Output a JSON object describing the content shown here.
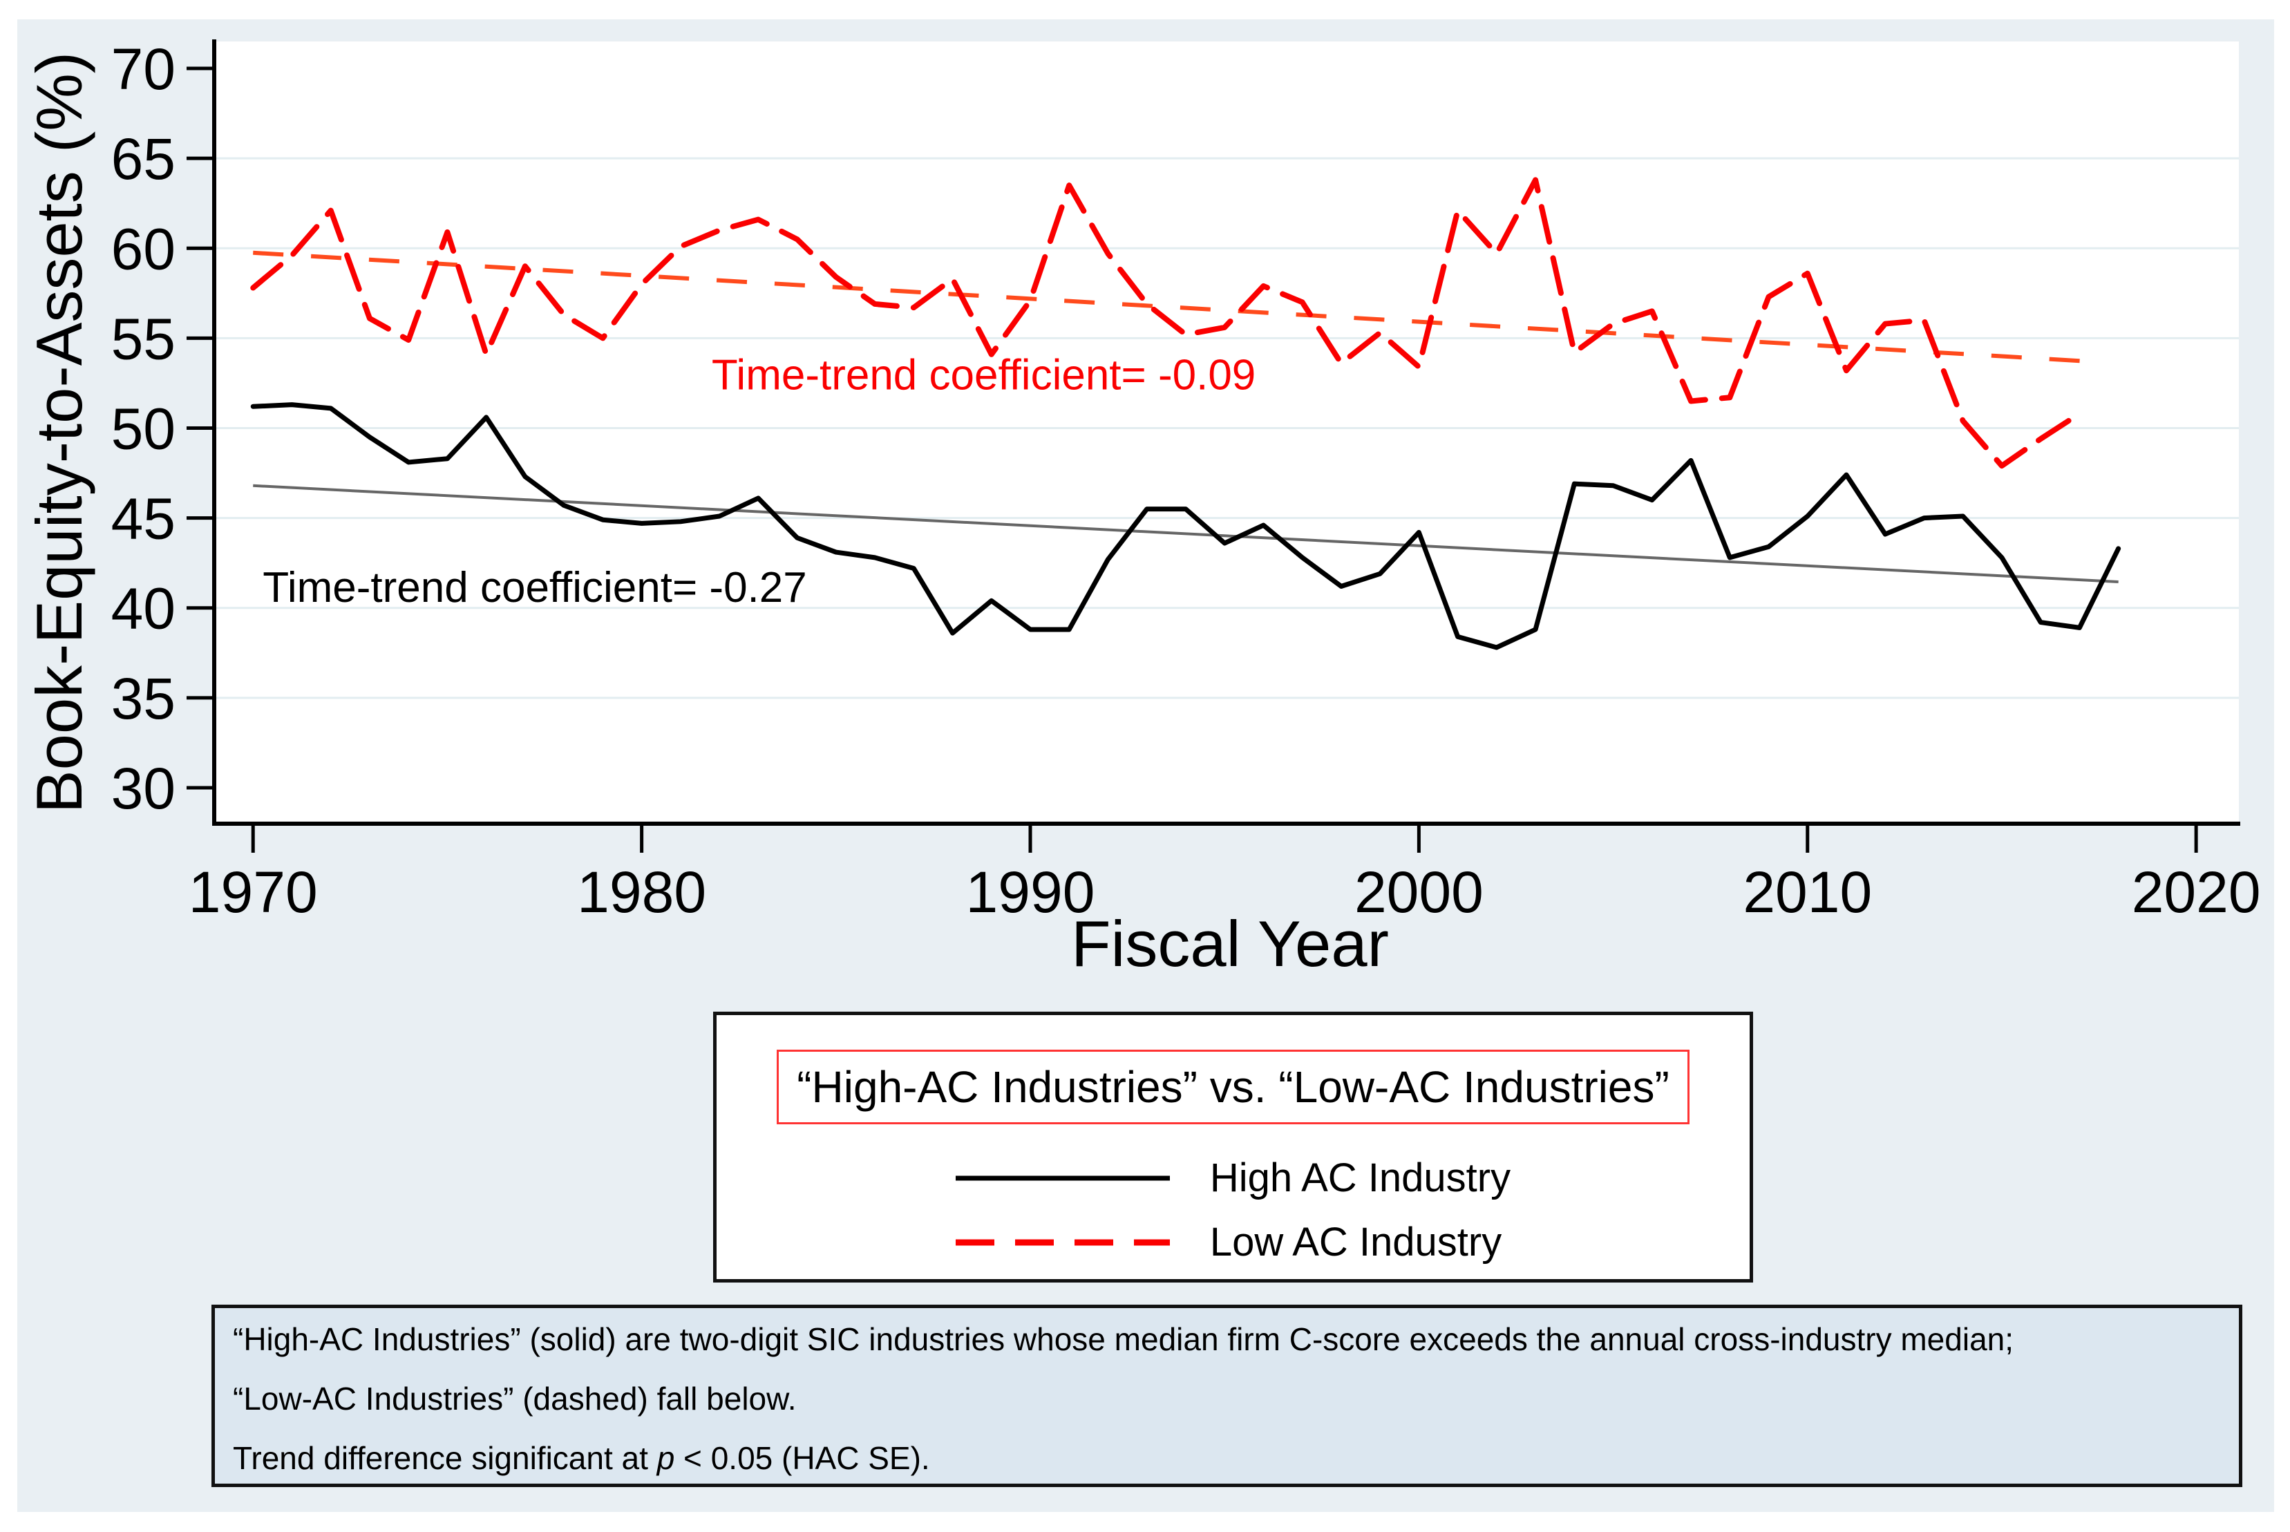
{
  "figure": {
    "background_color": "#e9eff3",
    "plot_background_color": "#ffffff",
    "gridline_color": "#e2edf0",
    "axis_color": "#000000",
    "notes_background_color": "#dce7f0",
    "legend_title_border_color": "#ff3333"
  },
  "chart_data": {
    "type": "line",
    "title": "",
    "xlabel": "Fiscal Year",
    "ylabel": "Book-Equity-to-Assets (%)",
    "x_range": [
      1969,
      2021.1
    ],
    "y_range": [
      28,
      71.5
    ],
    "x_ticks": [
      1970,
      1980,
      1990,
      2000,
      2010,
      2020
    ],
    "y_ticks": [
      30,
      35,
      40,
      45,
      50,
      55,
      60,
      65,
      70
    ],
    "gridlines": [
      35,
      40,
      45,
      50,
      55,
      60,
      65
    ],
    "grid_on": true,
    "legend_position": "below",
    "series": [
      {
        "name": "low_ac",
        "label": "Low AC Industry",
        "color": "#fa0000",
        "dash": "52 24",
        "width": 8,
        "start_year": 1970,
        "values": [
          57.8,
          59.6,
          62.1,
          56.1,
          54.9,
          60.9,
          54.1,
          59.0,
          56.3,
          55.0,
          58.0,
          60.1,
          61.0,
          61.6,
          60.5,
          58.4,
          56.9,
          56.7,
          58.3,
          54.1,
          57.1,
          63.5,
          59.7,
          56.9,
          55.2,
          55.6,
          57.9,
          57.0,
          53.6,
          55.3,
          53.4,
          62.1,
          59.7,
          63.8,
          54.2,
          55.8,
          56.5,
          51.5,
          51.7,
          57.3,
          58.6,
          53.2,
          55.8,
          56.0,
          50.4,
          47.9,
          49.4,
          50.8
        ]
      },
      {
        "name": "high_ac",
        "label": "High AC Industry",
        "color": "#000000",
        "dash": null,
        "width": 7,
        "start_year": 1970,
        "values": [
          51.2,
          51.3,
          51.1,
          49.5,
          48.1,
          48.3,
          50.6,
          47.3,
          45.7,
          44.9,
          44.7,
          44.8,
          45.1,
          46.1,
          43.9,
          43.1,
          42.8,
          42.2,
          38.6,
          40.4,
          38.8,
          38.8,
          42.7,
          45.5,
          45.5,
          43.6,
          44.6,
          42.8,
          41.2,
          41.9,
          44.2,
          38.4,
          37.8,
          38.8,
          46.9,
          46.8,
          46.0,
          48.2,
          42.8,
          43.4,
          45.1,
          47.4,
          44.1,
          45.0,
          45.1,
          42.8,
          39.2,
          38.9,
          43.3
        ]
      }
    ],
    "trend_lines": [
      {
        "name": "low_ac_trend",
        "color": "#ff4a1c",
        "dash": "44 40",
        "width": 6,
        "x": [
          1970,
          2017.3
        ],
        "y": [
          59.75,
          53.7
        ],
        "coefficient": -0.09
      },
      {
        "name": "high_ac_trend",
        "color": "#666666",
        "dash": null,
        "width": 4,
        "x": [
          1970,
          2018
        ],
        "y": [
          46.8,
          41.45
        ],
        "coefficient": -0.27
      }
    ],
    "annotations": [
      {
        "name": "low-trend-annotation",
        "text": "Time-trend coefficient= -0.09",
        "color": "#fa0000",
        "x": 1981.8,
        "y": 53.0,
        "font_size": 62
      },
      {
        "name": "high-trend-annotation",
        "text": "Time-trend coefficient= -0.27",
        "color": "#000000",
        "x": 1970.25,
        "y": 41.2,
        "font_size": 62
      }
    ]
  },
  "axes": {
    "x_title": "Fiscal Year",
    "y_title": "Book-Equity-to-Assets (%)"
  },
  "legend": {
    "title": "“High-AC Industries” vs. “Low-AC Industries”",
    "items": [
      {
        "label": "High AC Industry",
        "swatch": "solid-black-line"
      },
      {
        "label": "Low AC Industry",
        "swatch": "dashed-red-line"
      }
    ]
  },
  "notes": {
    "line1": "“High-AC Industries” (solid) are two-digit SIC industries whose median firm C-score exceeds the annual cross-industry median;",
    "line2": "“Low-AC Industries” (dashed) fall below.",
    "line3a": "Trend difference significant at ",
    "line3b": "p",
    "line3c": " < 0.05 (HAC SE)."
  }
}
